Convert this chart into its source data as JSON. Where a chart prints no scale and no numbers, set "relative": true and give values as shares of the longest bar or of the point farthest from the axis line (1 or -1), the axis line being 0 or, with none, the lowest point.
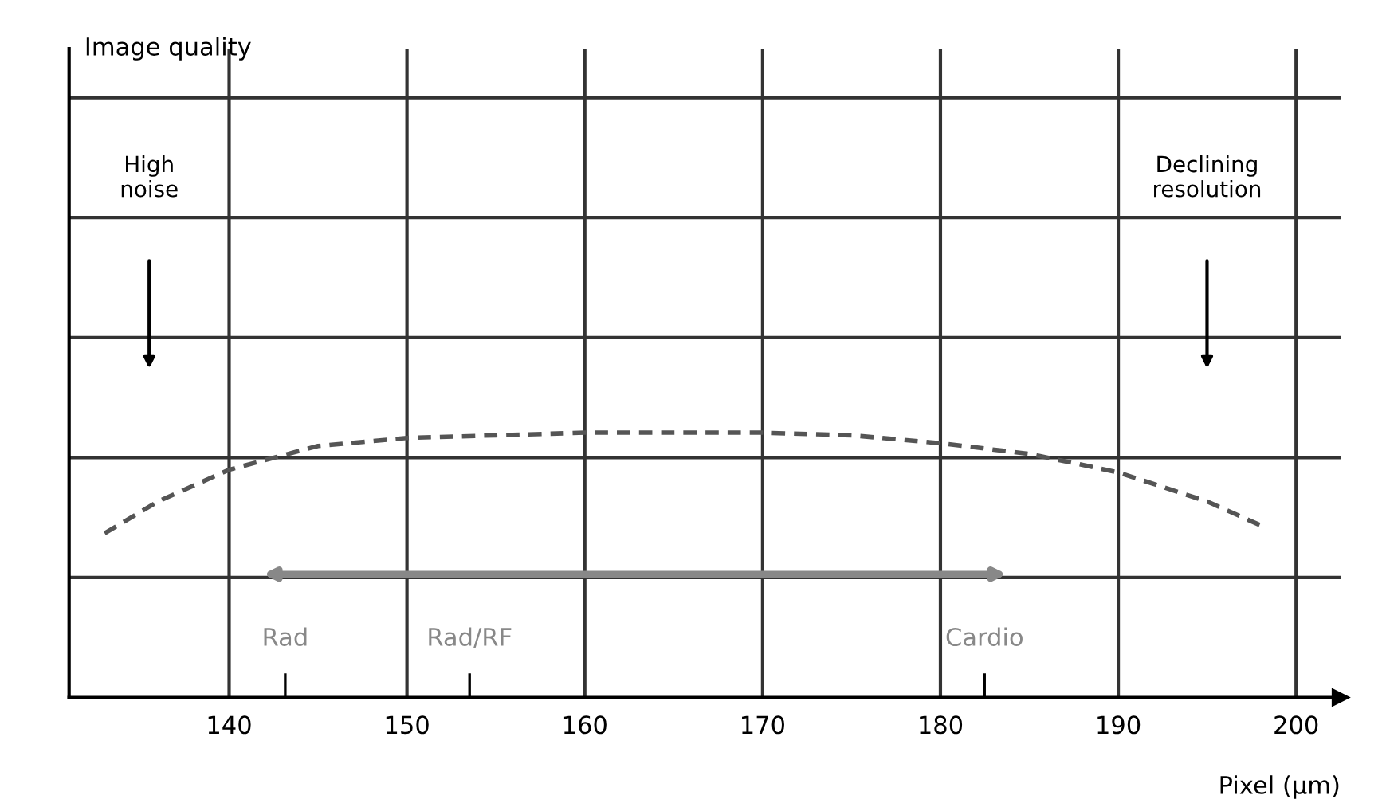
{
  "chart_data": {
    "type": "line",
    "relative": true,
    "xlabel": "Pixel (µm)",
    "xlim": [
      131,
      202.5
    ],
    "xticks": [
      140,
      150,
      160,
      170,
      180,
      190,
      200
    ],
    "grid": true,
    "line_style": "dashed",
    "marker": "none",
    "x": [
      133,
      136,
      140,
      145,
      150,
      155,
      160,
      165,
      170,
      175,
      180,
      185,
      190,
      195,
      198
    ],
    "series": [
      {
        "color": "#555555",
        "values": [
          0.62,
          0.74,
          0.86,
          0.95,
          0.98,
          0.99,
          1.0,
          1.0,
          1.0,
          0.99,
          0.96,
          0.92,
          0.85,
          0.74,
          0.65
        ]
      }
    ],
    "annotations": [
      "Image quality",
      "High\nnoise",
      "Declining\nresolution",
      "Rad",
      "Rad/RF",
      "Cardio"
    ]
  }
}
